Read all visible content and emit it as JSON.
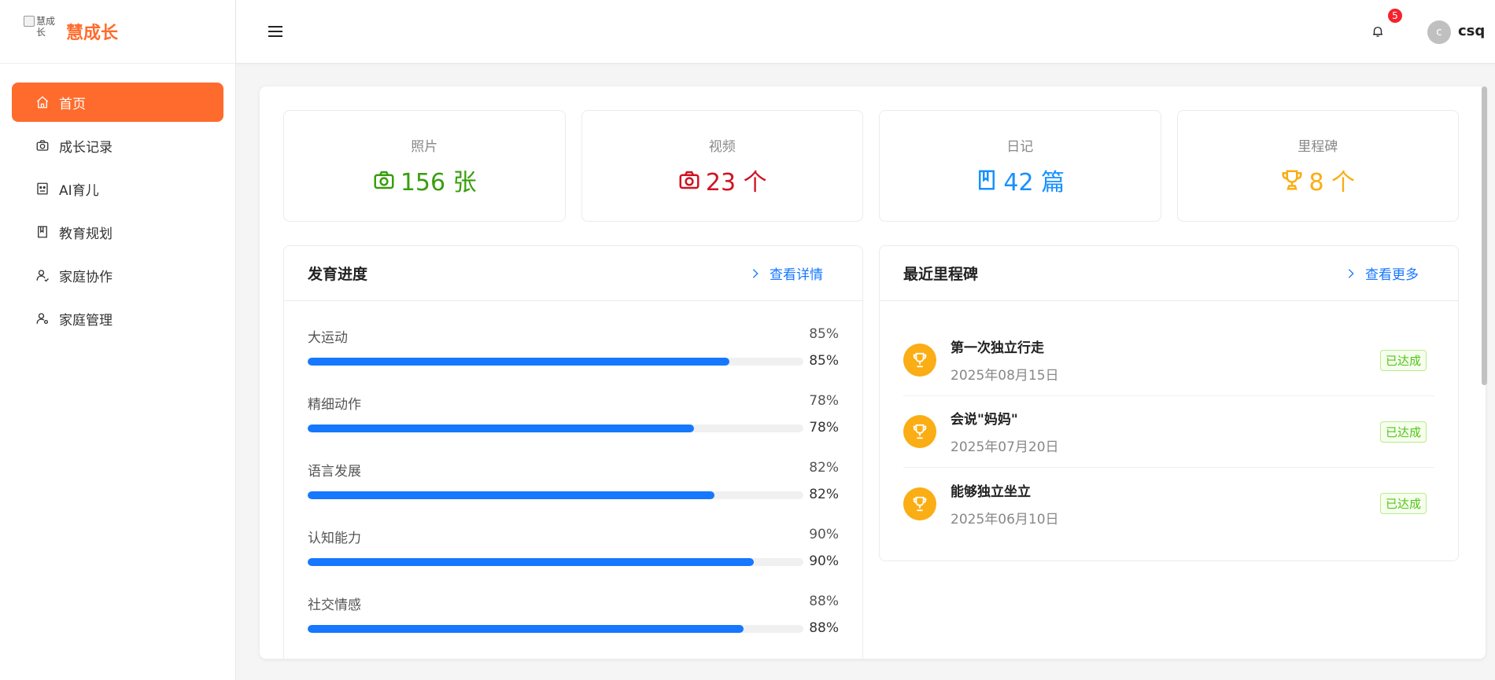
{
  "app": {
    "title": "慧成长",
    "logo_alt": "慧成长"
  },
  "sidebar": {
    "items": [
      {
        "label": "首页",
        "icon": "home-icon",
        "active": true
      },
      {
        "label": "成长记录",
        "icon": "camera-icon",
        "active": false
      },
      {
        "label": "AI育儿",
        "icon": "robot-icon",
        "active": false
      },
      {
        "label": "教育规划",
        "icon": "book-icon",
        "active": false
      },
      {
        "label": "家庭协作",
        "icon": "team-icon",
        "active": false
      },
      {
        "label": "家庭管理",
        "icon": "user-settings-icon",
        "active": false
      }
    ]
  },
  "header": {
    "notifications": "5",
    "avatar_initial": "c",
    "username": "csq"
  },
  "stats": [
    {
      "label": "照片",
      "value": "156 张",
      "icon": "camera-icon",
      "color": "#389e0d"
    },
    {
      "label": "视频",
      "value": "23 个",
      "icon": "video-camera-icon",
      "color": "#cf1322"
    },
    {
      "label": "日记",
      "value": "42 篇",
      "icon": "book-icon",
      "color": "#1890ff"
    },
    {
      "label": "里程碑",
      "value": "8 个",
      "icon": "trophy-icon",
      "color": "#faad14"
    }
  ],
  "development": {
    "title": "发育进度",
    "link": "查看详情",
    "items": [
      {
        "label": "大运动",
        "percent": 85,
        "percent_text": "85%"
      },
      {
        "label": "精细动作",
        "percent": 78,
        "percent_text": "78%"
      },
      {
        "label": "语言发展",
        "percent": 82,
        "percent_text": "82%"
      },
      {
        "label": "认知能力",
        "percent": 90,
        "percent_text": "90%"
      },
      {
        "label": "社交情感",
        "percent": 88,
        "percent_text": "88%"
      }
    ]
  },
  "milestones": {
    "title": "最近里程碑",
    "link": "查看更多",
    "items": [
      {
        "title": "第一次独立行走",
        "date": "2025年08月15日",
        "status": "已达成"
      },
      {
        "title": "会说\"妈妈\"",
        "date": "2025年07月20日",
        "status": "已达成"
      },
      {
        "title": "能够独立坐立",
        "date": "2025年06月10日",
        "status": "已达成"
      }
    ]
  },
  "colors": {
    "brand": "#ff6b2c",
    "progress": "#1677ff",
    "milestone_icon": "#faad14",
    "badge": "#f5222d"
  }
}
